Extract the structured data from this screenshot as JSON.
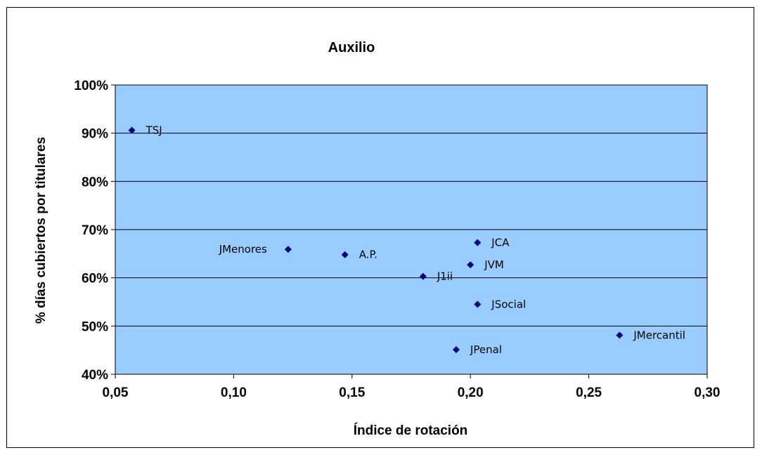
{
  "chart_data": {
    "type": "scatter",
    "title": "Auxilio",
    "xlabel": "Índice de rotación",
    "ylabel": "% días cubiertos por titulares",
    "xlim": [
      0.05,
      0.3
    ],
    "ylim": [
      0.4,
      1.0
    ],
    "x_ticks": [
      0.05,
      0.1,
      0.15,
      0.2,
      0.25,
      0.3
    ],
    "x_tick_labels": [
      "0,05",
      "0,10",
      "0,15",
      "0,20",
      "0,25",
      "0,30"
    ],
    "y_ticks": [
      0.4,
      0.5,
      0.6,
      0.7,
      0.8,
      0.9,
      1.0
    ],
    "y_tick_labels": [
      "40%",
      "50%",
      "60%",
      "70%",
      "80%",
      "90%",
      "100%"
    ],
    "grid": "horizontal",
    "marker": "diamond",
    "colors": {
      "plot_bg": "#99ccff",
      "marker": "#000080",
      "grid": "#000000"
    },
    "points": [
      {
        "label": "TSJ",
        "x": 0.057,
        "y": 0.906,
        "label_side": "right"
      },
      {
        "label": "JMenores",
        "x": 0.123,
        "y": 0.659,
        "label_side": "left"
      },
      {
        "label": "A.P.",
        "x": 0.147,
        "y": 0.648,
        "label_side": "right"
      },
      {
        "label": "J1ii",
        "x": 0.18,
        "y": 0.603,
        "label_side": "right"
      },
      {
        "label": "JCA",
        "x": 0.203,
        "y": 0.673,
        "label_side": "right"
      },
      {
        "label": "JVM",
        "x": 0.2,
        "y": 0.627,
        "label_side": "right"
      },
      {
        "label": "JSocial",
        "x": 0.203,
        "y": 0.545,
        "label_side": "right"
      },
      {
        "label": "JPenal",
        "x": 0.194,
        "y": 0.451,
        "label_side": "right"
      },
      {
        "label": "JMercantil",
        "x": 0.263,
        "y": 0.481,
        "label_side": "right"
      }
    ]
  }
}
